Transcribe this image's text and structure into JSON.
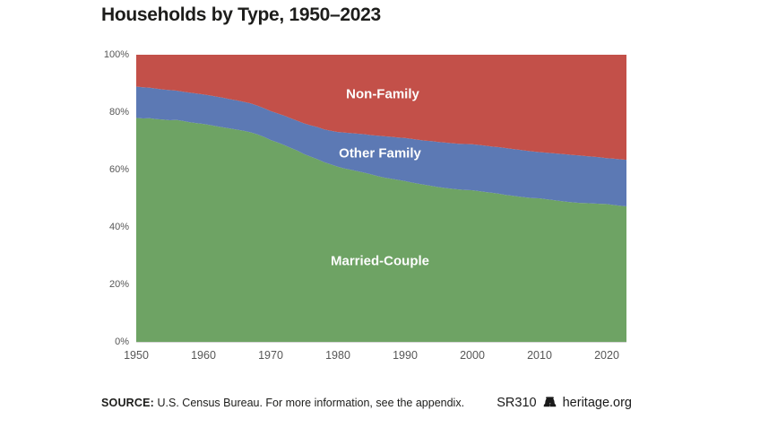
{
  "header": {
    "title": "Households by Type, 1950–2023"
  },
  "chart_data": {
    "type": "area",
    "stacked": true,
    "unit": "percent of households",
    "title": "Households by Type, 1950–2023",
    "xlabel": "",
    "ylabel": "",
    "ylim": [
      0,
      100
    ],
    "grid": false,
    "legend": "labels-inside-areas",
    "x_ticks": [
      1950,
      1960,
      1970,
      1980,
      1990,
      2000,
      2010,
      2020
    ],
    "y_ticks": [
      "0%",
      "20%",
      "40%",
      "60%",
      "80%",
      "100%"
    ],
    "x": [
      1950,
      1951,
      1952,
      1953,
      1954,
      1955,
      1956,
      1957,
      1958,
      1959,
      1960,
      1961,
      1962,
      1963,
      1964,
      1965,
      1966,
      1967,
      1968,
      1969,
      1970,
      1971,
      1972,
      1973,
      1974,
      1975,
      1976,
      1977,
      1978,
      1979,
      1980,
      1981,
      1982,
      1983,
      1984,
      1985,
      1986,
      1987,
      1988,
      1989,
      1990,
      1991,
      1992,
      1993,
      1994,
      1995,
      1996,
      1997,
      1998,
      1999,
      2000,
      2001,
      2002,
      2003,
      2004,
      2005,
      2006,
      2007,
      2008,
      2009,
      2010,
      2011,
      2012,
      2013,
      2014,
      2015,
      2016,
      2017,
      2018,
      2019,
      2020,
      2021,
      2022,
      2023
    ],
    "series": [
      {
        "name": "Married-Couple",
        "color": "#6ea364",
        "values": [
          78.0,
          77.8,
          77.9,
          77.6,
          77.4,
          77.2,
          77.3,
          76.9,
          76.5,
          76.2,
          75.9,
          75.5,
          75.1,
          74.7,
          74.3,
          73.9,
          73.5,
          73.0,
          72.3,
          71.4,
          70.3,
          69.5,
          68.6,
          67.6,
          66.6,
          65.4,
          64.5,
          63.6,
          62.6,
          61.8,
          61.0,
          60.4,
          59.9,
          59.4,
          58.9,
          58.3,
          57.7,
          57.2,
          56.8,
          56.4,
          56.0,
          55.5,
          55.1,
          54.7,
          54.3,
          53.9,
          53.6,
          53.3,
          53.1,
          52.9,
          52.8,
          52.5,
          52.2,
          51.9,
          51.6,
          51.2,
          50.9,
          50.6,
          50.3,
          50.1,
          50.0,
          49.7,
          49.4,
          49.1,
          48.8,
          48.6,
          48.4,
          48.3,
          48.2,
          48.1,
          48.0,
          47.7,
          47.4,
          47.2
        ]
      },
      {
        "name": "Other Family",
        "color": "#5c79b4",
        "values": [
          10.9,
          10.9,
          10.6,
          10.6,
          10.5,
          10.5,
          10.2,
          10.2,
          10.3,
          10.3,
          10.3,
          10.3,
          10.3,
          10.3,
          10.2,
          10.2,
          10.1,
          10.1,
          10.0,
          10.0,
          10.1,
          10.1,
          10.2,
          10.3,
          10.4,
          10.7,
          10.9,
          11.2,
          11.4,
          11.7,
          12.1,
          12.5,
          12.8,
          13.1,
          13.4,
          13.7,
          14.1,
          14.4,
          14.6,
          14.8,
          15.0,
          15.2,
          15.3,
          15.4,
          15.6,
          15.7,
          15.8,
          15.9,
          15.9,
          16.0,
          16.0,
          16.1,
          16.1,
          16.1,
          16.2,
          16.3,
          16.3,
          16.3,
          16.3,
          16.2,
          16.1,
          16.2,
          16.3,
          16.4,
          16.5,
          16.5,
          16.5,
          16.4,
          16.3,
          16.2,
          16.0,
          16.1,
          16.2,
          16.2
        ]
      },
      {
        "name": "Non-Family",
        "color": "#c35049",
        "values": [
          11.1,
          11.3,
          11.5,
          11.8,
          12.1,
          12.3,
          12.5,
          12.9,
          13.2,
          13.5,
          13.8,
          14.2,
          14.6,
          15.0,
          15.5,
          15.9,
          16.4,
          16.9,
          17.7,
          18.6,
          19.6,
          20.4,
          21.2,
          22.1,
          23.0,
          23.9,
          24.6,
          25.2,
          26.0,
          26.5,
          26.9,
          27.1,
          27.3,
          27.5,
          27.7,
          28.0,
          28.2,
          28.4,
          28.6,
          28.8,
          29.0,
          29.3,
          29.6,
          29.9,
          30.1,
          30.4,
          30.6,
          30.8,
          31.0,
          31.1,
          31.2,
          31.4,
          31.7,
          32.0,
          32.2,
          32.5,
          32.8,
          33.1,
          33.4,
          33.7,
          33.9,
          34.1,
          34.3,
          34.5,
          34.7,
          34.9,
          35.1,
          35.3,
          35.5,
          35.7,
          36.0,
          36.2,
          36.4,
          36.6
        ]
      }
    ]
  },
  "footer": {
    "source_label": "SOURCE:",
    "source_text": " U.S. Census Bureau. For more information, see the appendix.",
    "report_id": "SR310",
    "brand": "heritage.org",
    "logo_icon": "liberty-bell-icon"
  },
  "colors": {
    "married_couple": "#6ea364",
    "other_family": "#5c79b4",
    "non_family": "#c35049",
    "axis_text": "#575757",
    "title_text": "#1d1d1b",
    "background": "#ffffff"
  }
}
